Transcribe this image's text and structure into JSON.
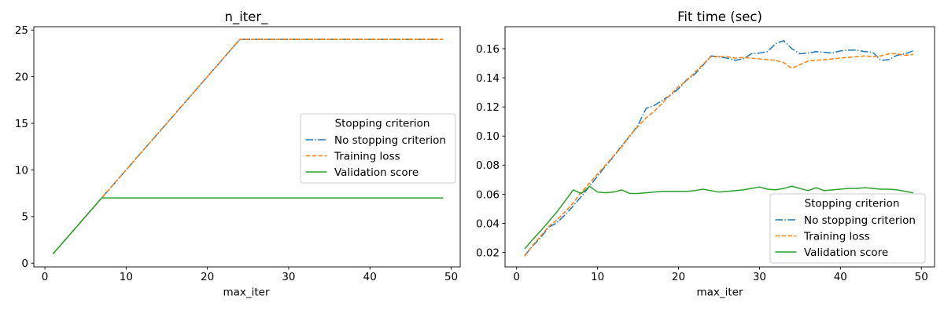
{
  "figure": {
    "background": "#ffffff",
    "text_color": "#000000",
    "spine_color": "#000000",
    "legend_border_color": "#cccccc",
    "legend_fill": "#ffffff"
  },
  "legend": {
    "title": "Stopping criterion"
  },
  "series_meta": [
    {
      "name": "No stopping criterion",
      "color": "#1f77b4",
      "style": "dashdot"
    },
    {
      "name": "Training loss",
      "color": "#ff7f0e",
      "style": "dashed"
    },
    {
      "name": "Validation score",
      "color": "#2ca02c",
      "style": "solid"
    }
  ],
  "chart_data": [
    {
      "type": "line",
      "title": "n_iter_",
      "xlabel": "max_iter",
      "xlim": [
        -1.36,
        51.11
      ],
      "ylim": [
        -0.4,
        25.36
      ],
      "xticks": [
        0,
        10,
        20,
        30,
        40,
        50
      ],
      "xtick_labels": [
        "0",
        "10",
        "20",
        "30",
        "40",
        "50"
      ],
      "yticks": [
        0,
        5,
        10,
        15,
        20,
        25
      ],
      "ytick_labels": [
        "0",
        "5",
        "10",
        "15",
        "20",
        "25"
      ],
      "grid": false,
      "legend_position": "center right",
      "x": [
        1,
        2,
        3,
        4,
        5,
        6,
        7,
        8,
        9,
        10,
        11,
        12,
        13,
        14,
        15,
        16,
        17,
        18,
        19,
        20,
        21,
        22,
        23,
        24,
        25,
        26,
        27,
        28,
        29,
        30,
        31,
        32,
        33,
        34,
        35,
        36,
        37,
        38,
        39,
        40,
        41,
        42,
        43,
        44,
        45,
        46,
        47,
        48,
        49
      ],
      "series": [
        {
          "name": "No stopping criterion",
          "values": [
            1,
            2,
            3,
            4,
            5,
            6,
            7,
            8,
            9,
            10,
            11,
            12,
            13,
            14,
            15,
            16,
            17,
            18,
            19,
            20,
            21,
            22,
            23,
            24,
            24,
            24,
            24,
            24,
            24,
            24,
            24,
            24,
            24,
            24,
            24,
            24,
            24,
            24,
            24,
            24,
            24,
            24,
            24,
            24,
            24,
            24,
            24,
            24,
            24
          ]
        },
        {
          "name": "Training loss",
          "values": [
            1,
            2,
            3,
            4,
            5,
            6,
            7,
            8,
            9,
            10,
            11,
            12,
            13,
            14,
            15,
            16,
            17,
            18,
            19,
            20,
            21,
            22,
            23,
            24,
            24,
            24,
            24,
            24,
            24,
            24,
            24,
            24,
            24,
            24,
            24,
            24,
            24,
            24,
            24,
            24,
            24,
            24,
            24,
            24,
            24,
            24,
            24,
            24,
            24
          ]
        },
        {
          "name": "Validation score",
          "values": [
            1,
            2,
            3,
            4,
            5,
            6,
            7,
            7,
            7,
            7,
            7,
            7,
            7,
            7,
            7,
            7,
            7,
            7,
            7,
            7,
            7,
            7,
            7,
            7,
            7,
            7,
            7,
            7,
            7,
            7,
            7,
            7,
            7,
            7,
            7,
            7,
            7,
            7,
            7,
            7,
            7,
            7,
            7,
            7,
            7,
            7,
            7,
            7,
            7
          ]
        }
      ]
    },
    {
      "type": "line",
      "title": "Fit time (sec)",
      "xlabel": "max_iter",
      "xlim": [
        -1.43,
        51.63
      ],
      "ylim": [
        0.0101,
        0.1751
      ],
      "xticks": [
        0,
        10,
        20,
        30,
        40,
        50
      ],
      "xtick_labels": [
        "0",
        "10",
        "20",
        "30",
        "40",
        "50"
      ],
      "yticks": [
        0.02,
        0.04,
        0.06,
        0.08,
        0.1,
        0.12,
        0.14,
        0.16
      ],
      "ytick_labels": [
        "0.02",
        "0.04",
        "0.06",
        "0.08",
        "0.10",
        "0.12",
        "0.14",
        "0.16"
      ],
      "grid": false,
      "legend_position": "lower right",
      "x": [
        1,
        2,
        3,
        4,
        5,
        6,
        7,
        8,
        9,
        10,
        11,
        12,
        13,
        14,
        15,
        16,
        17,
        18,
        19,
        20,
        21,
        22,
        23,
        24,
        25,
        26,
        27,
        28,
        29,
        30,
        31,
        32,
        33,
        34,
        35,
        36,
        37,
        38,
        39,
        40,
        41,
        42,
        43,
        44,
        45,
        46,
        47,
        48,
        49
      ],
      "series": [
        {
          "name": "No stopping criterion",
          "values": [
            0.018,
            0.0245,
            0.0305,
            0.0375,
            0.0405,
            0.046,
            0.052,
            0.0585,
            0.0655,
            0.0725,
            0.0795,
            0.086,
            0.0935,
            0.1,
            0.1075,
            0.119,
            0.121,
            0.1245,
            0.128,
            0.1325,
            0.1385,
            0.1425,
            0.1485,
            0.155,
            0.1545,
            0.1535,
            0.152,
            0.153,
            0.1565,
            0.157,
            0.158,
            0.1635,
            0.1655,
            0.16,
            0.1565,
            0.157,
            0.158,
            0.1575,
            0.157,
            0.1585,
            0.159,
            0.159,
            0.158,
            0.1575,
            0.152,
            0.1525,
            0.1555,
            0.1565,
            0.1585
          ]
        },
        {
          "name": "Training loss",
          "values": [
            0.0175,
            0.025,
            0.0315,
            0.038,
            0.0425,
            0.048,
            0.054,
            0.0615,
            0.0675,
            0.074,
            0.08,
            0.0865,
            0.0925,
            0.1005,
            0.1065,
            0.1125,
            0.117,
            0.1225,
            0.1285,
            0.134,
            0.138,
            0.1435,
            0.149,
            0.1545,
            0.1545,
            0.1545,
            0.1535,
            0.154,
            0.1535,
            0.153,
            0.1525,
            0.152,
            0.1505,
            0.1465,
            0.149,
            0.1515,
            0.152,
            0.1525,
            0.153,
            0.1535,
            0.154,
            0.1545,
            0.155,
            0.1545,
            0.155,
            0.1565,
            0.1565,
            0.1555,
            0.156
          ]
        },
        {
          "name": "Validation score",
          "values": [
            0.0225,
            0.029,
            0.035,
            0.0415,
            0.048,
            0.0555,
            0.063,
            0.0605,
            0.0655,
            0.0615,
            0.061,
            0.0615,
            0.063,
            0.0605,
            0.0605,
            0.061,
            0.0615,
            0.062,
            0.062,
            0.062,
            0.062,
            0.0625,
            0.0635,
            0.0625,
            0.0615,
            0.062,
            0.0625,
            0.063,
            0.064,
            0.065,
            0.0635,
            0.063,
            0.064,
            0.0655,
            0.064,
            0.0625,
            0.0645,
            0.0625,
            0.063,
            0.0635,
            0.064,
            0.064,
            0.0645,
            0.064,
            0.0635,
            0.0635,
            0.063,
            0.062,
            0.061
          ]
        }
      ]
    }
  ]
}
